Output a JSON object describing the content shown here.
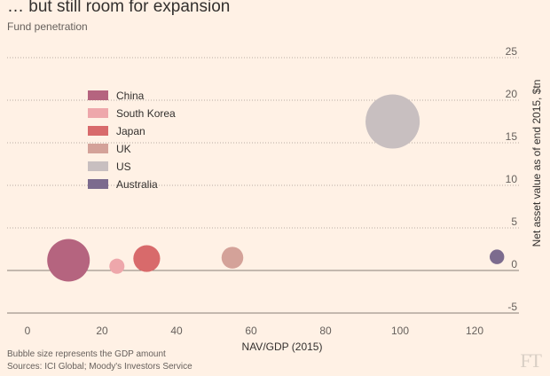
{
  "header": {
    "title": "… but still room for expansion",
    "subtitle": "Fund penetration"
  },
  "footer": {
    "note": "Bubble size represents the GDP amount",
    "sources": "Sources: ICI Global; Moody's Investors Service",
    "logo": "FT"
  },
  "chart_data": {
    "type": "scatter",
    "variant": "bubble",
    "xlabel": "NAV/GDP (2015)",
    "ylabel": "Net asset value as of end 2015, $tn",
    "xlim": [
      -6,
      130
    ],
    "ylim": [
      -5,
      25
    ],
    "x_ticks": [
      0,
      20,
      40,
      60,
      80,
      100,
      120
    ],
    "y_ticks": [
      -5,
      0,
      5,
      10,
      15,
      20,
      25
    ],
    "grid": "horizontal dotted",
    "legend_position": "upper-left",
    "series": [
      {
        "name": "China",
        "x": 11,
        "y": 1.2,
        "gdp": 11.1,
        "color": "#b5647f"
      },
      {
        "name": "South Korea",
        "x": 24,
        "y": 0.5,
        "gdp": 1.4,
        "color": "#eea7ab"
      },
      {
        "name": "Japan",
        "x": 32,
        "y": 1.4,
        "gdp": 4.4,
        "color": "#d86a6b"
      },
      {
        "name": "UK",
        "x": 55,
        "y": 1.5,
        "gdp": 2.9,
        "color": "#d4a299"
      },
      {
        "name": "US",
        "x": 98,
        "y": 17.5,
        "gdp": 18.0,
        "color": "#c8bfc0"
      },
      {
        "name": "Australia",
        "x": 126,
        "y": 1.6,
        "gdp": 1.3,
        "color": "#7c6b8e"
      }
    ]
  }
}
